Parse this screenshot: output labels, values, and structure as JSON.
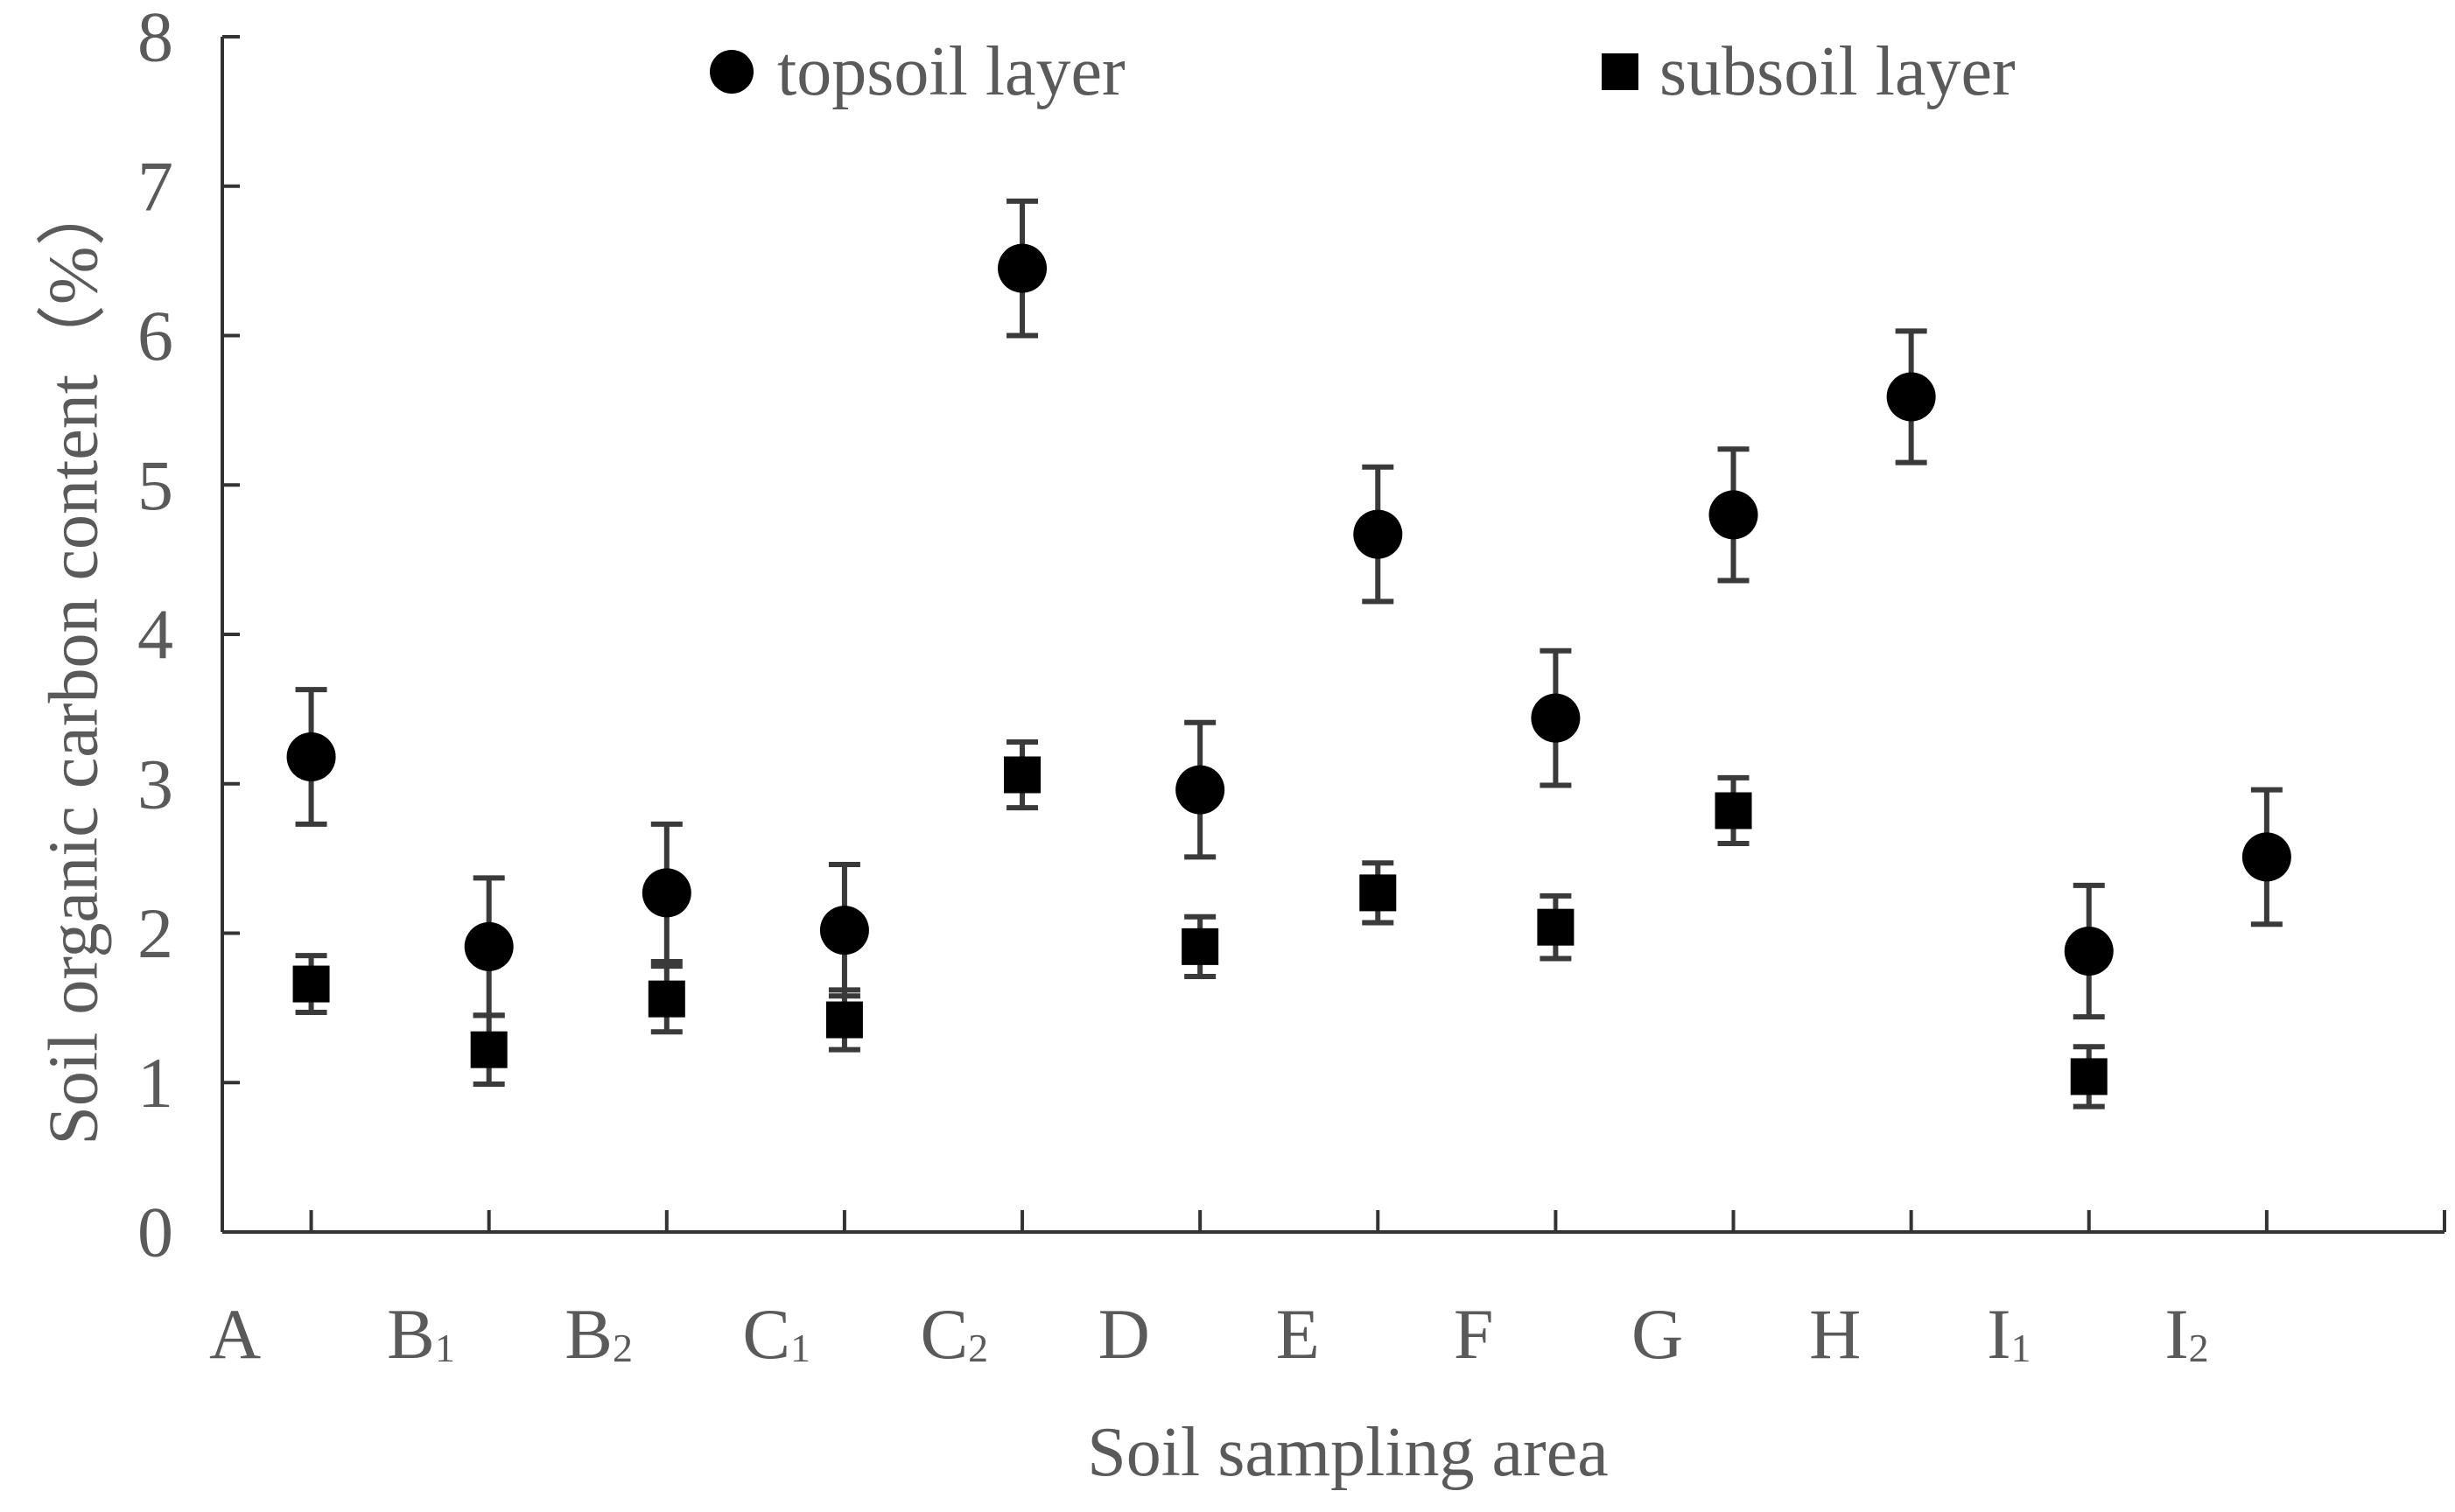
{
  "chart_data": {
    "type": "scatter",
    "title": "",
    "xlabel": "Soil sampling area",
    "ylabel": "Soil organic carbon content（%）",
    "ylim": [
      0,
      8
    ],
    "yticks": [
      0,
      1,
      2,
      3,
      4,
      5,
      6,
      7,
      8
    ],
    "grid": false,
    "legend_position": "top",
    "error_bars": true,
    "categories": [
      {
        "main": "A",
        "sub": ""
      },
      {
        "main": "B",
        "sub": "1"
      },
      {
        "main": "B",
        "sub": "2"
      },
      {
        "main": "C",
        "sub": "1"
      },
      {
        "main": "C",
        "sub": "2"
      },
      {
        "main": "D",
        "sub": ""
      },
      {
        "main": "E",
        "sub": ""
      },
      {
        "main": "F",
        "sub": ""
      },
      {
        "main": "G",
        "sub": ""
      },
      {
        "main": "H",
        "sub": ""
      },
      {
        "main": "I",
        "sub": "1"
      },
      {
        "main": "I",
        "sub": "2"
      }
    ],
    "series": [
      {
        "name": "topsoil layer",
        "marker": "circle",
        "color": "#000000",
        "values": [
          3.18,
          1.91,
          2.27,
          2.02,
          6.45,
          2.96,
          4.67,
          3.44,
          4.8,
          5.59,
          1.88,
          2.51
        ],
        "errors": [
          0.45,
          0.46,
          0.46,
          0.44,
          0.45,
          0.45,
          0.45,
          0.45,
          0.44,
          0.44,
          0.44,
          0.45
        ]
      },
      {
        "name": "subsoil layer",
        "marker": "square",
        "color": "#000000",
        "values": [
          1.66,
          1.22,
          1.56,
          1.42,
          3.06,
          1.91,
          2.27,
          2.04,
          2.82,
          null,
          1.04,
          null
        ],
        "errors": [
          0.19,
          0.23,
          0.22,
          0.2,
          0.22,
          0.2,
          0.2,
          0.21,
          0.22,
          null,
          0.2,
          null
        ]
      }
    ]
  }
}
